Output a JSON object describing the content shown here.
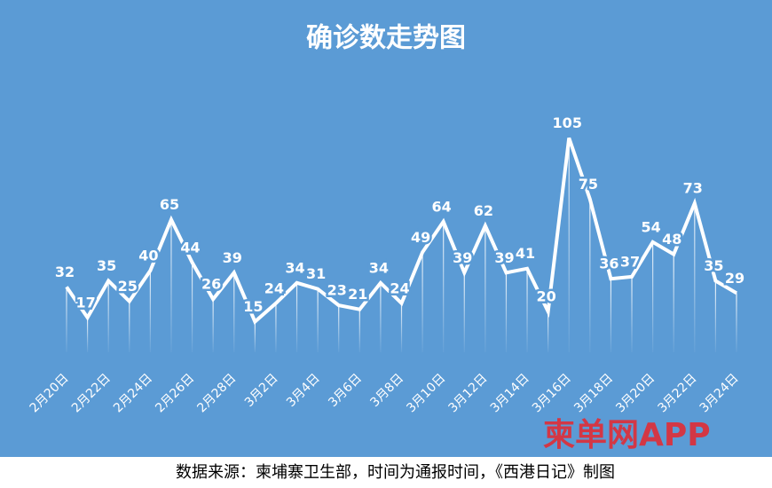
{
  "chart_data": {
    "type": "line",
    "title": "确诊数走势图",
    "categories": [
      "2月20日",
      null,
      "2月22日",
      null,
      "2月24日",
      null,
      "2月26日",
      null,
      "2月28日",
      null,
      "3月2日",
      null,
      "3月4日",
      null,
      "3月6日",
      null,
      "3月8日",
      null,
      "3月10日",
      null,
      "3月12日",
      null,
      "3月14日",
      null,
      "3月16日",
      null,
      "3月18日",
      null,
      "3月20日",
      null,
      "3月22日",
      null,
      "3月24日"
    ],
    "values": [
      32,
      17,
      35,
      25,
      40,
      65,
      44,
      26,
      39,
      15,
      24,
      34,
      31,
      23,
      21,
      34,
      24,
      49,
      64,
      39,
      62,
      39,
      41,
      20,
      105,
      75,
      36,
      37,
      54,
      48,
      73,
      35,
      29
    ],
    "color": "#ffffff",
    "background": "#5b9bd5",
    "ylim": [
      0,
      125
    ],
    "source": "数据来源：柬埔寨卫生部，时间为通报时间，《西港日记》制图",
    "watermark": "柬单网APP"
  }
}
